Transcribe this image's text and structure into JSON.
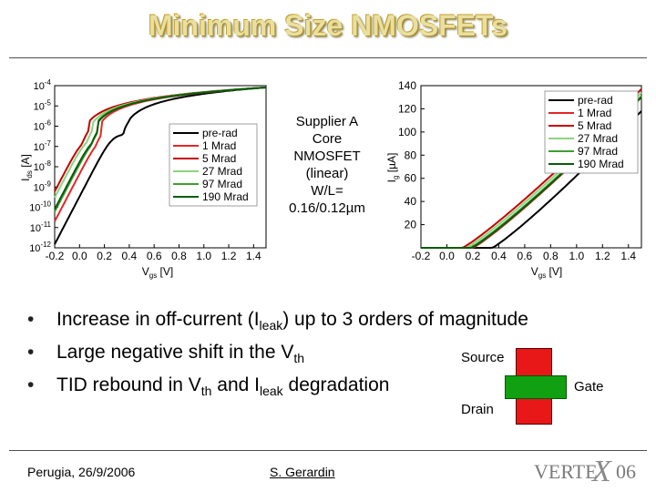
{
  "slide": {
    "title": "Minimum Size NMOSFETs",
    "note_lines": [
      "Supplier A",
      "Core",
      "NMOSFET",
      "(linear)",
      "W/L=",
      "0.16/0.12µm"
    ],
    "bullets": [
      [
        {
          "t": "Increase in off-current (I"
        },
        {
          "t": "leak",
          "sub": true
        },
        {
          "t": ") up to 3 orders of magnitude"
        }
      ],
      [
        {
          "t": "Large negative shift in the V"
        },
        {
          "t": "th",
          "sub": true
        }
      ],
      [
        {
          "t": "TID rebound in V"
        },
        {
          "t": "th",
          "sub": true
        },
        {
          "t": " and I"
        },
        {
          "t": "leak",
          "sub": true
        },
        {
          "t": " degradation"
        }
      ]
    ],
    "transistor": {
      "source": "Source",
      "gate": "Gate",
      "drain": "Drain",
      "channel_color": "#e81818",
      "gate_color": "#11a011"
    },
    "footer": {
      "left": "Perugia, 26/9/2006",
      "center": "S. Gerardin"
    },
    "logo": {
      "text": "VERTE",
      "x": "X",
      "num": "06"
    }
  },
  "chart_data": [
    {
      "type": "line",
      "yscale": "log",
      "xlabel": "Vgs [V]",
      "ylabel": "Ids [A]",
      "xlim": [
        -0.2,
        1.5
      ],
      "ylim": [
        1e-12,
        0.0001
      ],
      "xticks": [
        "-0.2",
        "0.0",
        "0.2",
        "0.4",
        "0.6",
        "0.8",
        "1.0",
        "1.2",
        "1.4"
      ],
      "yticks": [
        {
          "b": "10",
          "e": "-4"
        },
        {
          "b": "10",
          "e": "-5"
        },
        {
          "b": "10",
          "e": "-6"
        },
        {
          "b": "10",
          "e": "-7"
        },
        {
          "b": "10",
          "e": "-8"
        },
        {
          "b": "10",
          "e": "-9"
        },
        {
          "b": "10",
          "e": "-10"
        },
        {
          "b": "10",
          "e": "-11"
        },
        {
          "b": "10",
          "e": "-12"
        }
      ],
      "legend_position": "center-right",
      "series": [
        {
          "name": "pre-rad",
          "color": "#000000",
          "ioff": 1.5e-12,
          "vth": 0.35
        },
        {
          "name": "1 Mrad",
          "color": "#e32727",
          "ioff": 2e-11,
          "vth": 0.13
        },
        {
          "name": "5 Mrad",
          "color": "#c40000",
          "ioff": 6e-10,
          "vth": 0.02
        },
        {
          "name": "27 Mrad",
          "color": "#8cd47e",
          "ioff": 3e-10,
          "vth": 0.06
        },
        {
          "name": "97 Mrad",
          "color": "#3da031",
          "ioff": 6e-11,
          "vth": 0.09
        },
        {
          "name": "190 Mrad",
          "color": "#0a5c0a",
          "ioff": 8e-11,
          "vth": 0.1
        }
      ]
    },
    {
      "type": "line",
      "xlabel": "Vgs [V]",
      "ylabel": "Ig [µA]",
      "xlim": [
        -0.2,
        1.5
      ],
      "ylim": [
        0,
        140
      ],
      "xticks": [
        "-0.2",
        "0.0",
        "0.2",
        "0.4",
        "0.6",
        "0.8",
        "1.0",
        "1.2",
        "1.4"
      ],
      "yticks": [
        "140",
        "120",
        "100",
        "80",
        "60",
        "40",
        "20"
      ],
      "legend_position": "top-right",
      "series": [
        {
          "name": "pre-rad",
          "color": "#000000",
          "vth": 0.35,
          "y_at_1_5": 118
        },
        {
          "name": "1 Mrad",
          "color": "#e32727",
          "vth": 0.2,
          "y_at_1_5": 130
        },
        {
          "name": "5 Mrad",
          "color": "#c40000",
          "vth": 0.12,
          "y_at_1_5": 137
        },
        {
          "name": "27 Mrad",
          "color": "#8cd47e",
          "vth": 0.15,
          "y_at_1_5": 134
        },
        {
          "name": "97 Mrad",
          "color": "#3da031",
          "vth": 0.18,
          "y_at_1_5": 131
        },
        {
          "name": "190 Mrad",
          "color": "#0a5c0a",
          "vth": 0.19,
          "y_at_1_5": 130
        }
      ]
    }
  ]
}
